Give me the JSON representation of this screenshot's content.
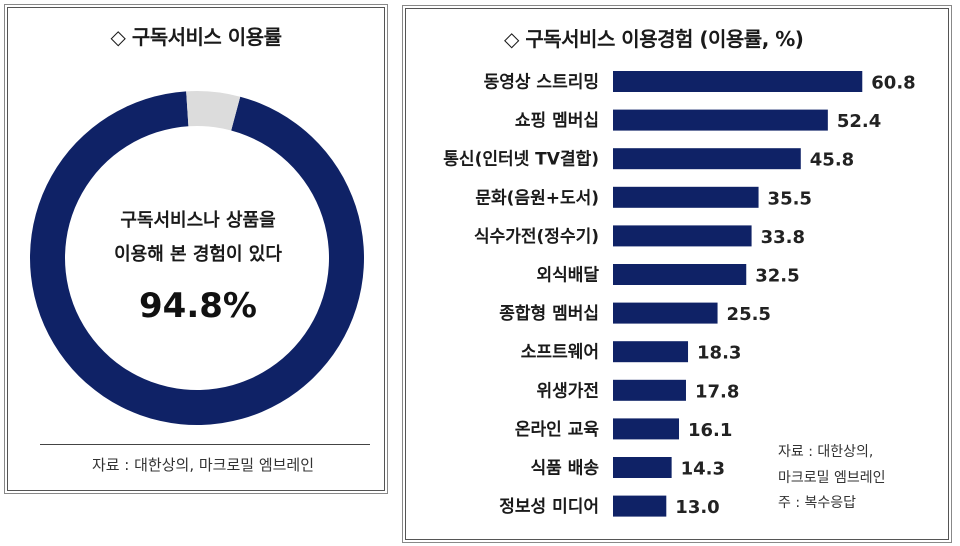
{
  "left": {
    "title": "◇ 구독서비스 이용률",
    "center_line1": "구독서비스나 상품을",
    "center_line2": "이용해 본 경험이 있다",
    "center_value": "94.8%",
    "source": "자료 : 대한상의, 마크로밀 엠브레인"
  },
  "right": {
    "title": "◇ 구독서비스 이용경험 (이용률, %)",
    "note_source_1": "자료 : 대한상의,",
    "note_source_2": "마크로밀 엠브레인",
    "note_multi": "주 : 복수응답"
  },
  "colors": {
    "bar": "#0f2266",
    "donut_fill": "#0f2266",
    "donut_rest": "#dcdcdc"
  },
  "chart_data": [
    {
      "type": "pie",
      "subtype": "donut",
      "title": "◇ 구독서비스 이용률",
      "slices": [
        {
          "label": "구독서비스나 상품을 이용해 본 경험이 있다",
          "value": 94.8
        },
        {
          "label": "",
          "value": 5.2
        }
      ]
    },
    {
      "type": "bar",
      "orientation": "horizontal",
      "title": "◇ 구독서비스 이용경험 (이용률, %)",
      "categories": [
        "동영상 스트리밍",
        "쇼핑 멤버십",
        "통신(인터넷 TV결합)",
        "문화(음원+도서)",
        "식수가전(정수기)",
        "외식배달",
        "종합형 멤버십",
        "소프트웨어",
        "위생가전",
        "온라인 교육",
        "식품 배송",
        "정보성 미디어"
      ],
      "values": [
        60.8,
        52.4,
        45.8,
        35.5,
        33.8,
        32.5,
        25.5,
        18.3,
        17.8,
        16.1,
        14.3,
        13.0
      ],
      "value_labels": [
        "60.8",
        "52.4",
        "45.8",
        "35.5",
        "33.8",
        "32.5",
        "25.5",
        "18.3",
        "17.8",
        "16.1",
        "14.3",
        "13.0"
      ],
      "xlim": [
        0,
        70
      ],
      "grid": false,
      "legend": "none"
    }
  ]
}
